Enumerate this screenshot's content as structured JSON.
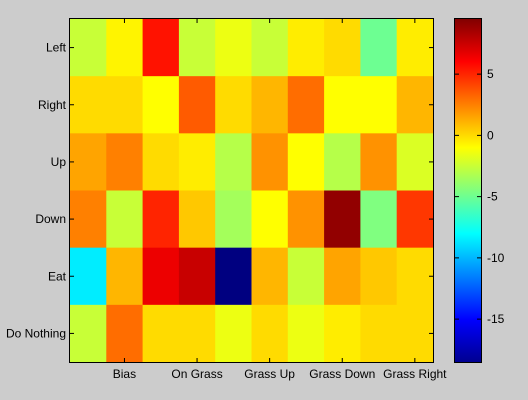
{
  "chart_data": {
    "type": "heatmap",
    "title": "",
    "xlabel": "",
    "ylabel": "",
    "rows": [
      "Left",
      "Right",
      "Up",
      "Down",
      "Eat",
      "Do Nothing"
    ],
    "x_tick_labels": [
      "Bias",
      "On Grass",
      "Grass Up",
      "Grass Down",
      "Grass Right"
    ],
    "x_tick_columns": [
      1.5,
      3.5,
      5.5,
      7.5,
      9.5
    ],
    "num_columns": 10,
    "values": [
      [
        -2.5,
        -0.7,
        5.5,
        -2.5,
        -1.5,
        -2.5,
        -0.5,
        0.0,
        -5.0,
        -0.5
      ],
      [
        0.0,
        0.0,
        -1.0,
        3.5,
        0.0,
        1.0,
        3.0,
        -1.0,
        -1.0,
        1.0
      ],
      [
        1.5,
        2.5,
        0.0,
        -0.5,
        -3.0,
        2.0,
        -1.0,
        -3.0,
        2.0,
        -2.0
      ],
      [
        2.5,
        -2.5,
        5.0,
        0.5,
        -3.5,
        -1.0,
        2.0,
        9.0,
        -4.5,
        4.5
      ],
      [
        -8.5,
        1.0,
        6.5,
        7.5,
        -18.5,
        1.0,
        -2.5,
        1.5,
        0.5,
        0.0
      ],
      [
        -2.5,
        3.0,
        0.0,
        0.0,
        -1.5,
        0.0,
        -1.5,
        -0.5,
        0.0,
        0.0
      ]
    ],
    "colorbar": {
      "colormap": "jet",
      "min": -18.5,
      "max": 9.5,
      "ticks": [
        5,
        0,
        -5,
        -10,
        -15
      ]
    }
  }
}
